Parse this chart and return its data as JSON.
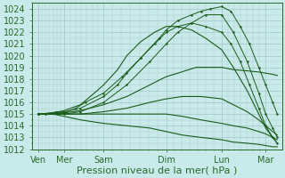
{
  "bg_color": "#c8eaea",
  "grid_color_major": "#9abcbc",
  "grid_color_minor": "#b0cccc",
  "line_color": "#1a5c1a",
  "xlabel": "Pression niveau de la mer( hPa )",
  "xlabel_fontsize": 8,
  "tick_label_fontsize": 7,
  "ylim": [
    1012,
    1024.5
  ],
  "yticks": [
    1012,
    1013,
    1014,
    1015,
    1016,
    1017,
    1018,
    1019,
    1020,
    1021,
    1022,
    1023,
    1024
  ],
  "x_day_labels": [
    "Ven",
    "Mer",
    "Sam",
    "Dim",
    "Lun",
    "Mar"
  ],
  "x_day_positions": [
    0.08,
    0.65,
    1.5,
    2.85,
    4.05,
    5.0
  ],
  "xlim": [
    -0.05,
    5.35
  ],
  "series": [
    {
      "comment": "highest peak line - dotted, peaks around Lun at 1024.2",
      "x": [
        0.08,
        0.25,
        0.5,
        0.65,
        0.9,
        1.1,
        1.5,
        1.9,
        2.3,
        2.7,
        2.85,
        3.1,
        3.4,
        3.6,
        3.8,
        4.05,
        4.25,
        4.45,
        4.65,
        4.85,
        5.0,
        5.15,
        5.25
      ],
      "y": [
        1015.0,
        1015.0,
        1015.2,
        1015.1,
        1015.5,
        1016.0,
        1016.8,
        1018.2,
        1019.8,
        1021.5,
        1022.2,
        1023.0,
        1023.5,
        1023.8,
        1024.0,
        1024.2,
        1023.8,
        1022.5,
        1021.0,
        1019.0,
        1017.5,
        1016.0,
        1015.0
      ],
      "dotted": true
    },
    {
      "comment": "second dotted line - peaks around Dim at 1023.5, ends ~1013",
      "x": [
        0.08,
        0.25,
        0.5,
        0.65,
        1.0,
        1.5,
        2.0,
        2.5,
        2.85,
        3.1,
        3.4,
        3.7,
        4.05,
        4.3,
        4.6,
        4.85,
        5.0,
        5.15,
        5.25
      ],
      "y": [
        1015.0,
        1015.0,
        1015.1,
        1015.0,
        1015.2,
        1016.0,
        1017.5,
        1019.5,
        1021.0,
        1022.0,
        1022.8,
        1023.5,
        1023.5,
        1022.0,
        1019.5,
        1016.8,
        1015.0,
        1013.8,
        1013.0
      ],
      "dotted": true
    },
    {
      "comment": "third dotted line - smaller peak around Sam-Dim, ends ~1013",
      "x": [
        0.08,
        0.4,
        0.65,
        1.0,
        1.5,
        1.8,
        2.0,
        2.3,
        2.6,
        2.85,
        3.1,
        3.4,
        3.7,
        4.05,
        4.25,
        4.45,
        4.65,
        4.85,
        5.0,
        5.15,
        5.25
      ],
      "y": [
        1015.0,
        1015.1,
        1015.2,
        1015.5,
        1016.5,
        1017.5,
        1018.5,
        1019.8,
        1021.0,
        1022.0,
        1022.5,
        1022.8,
        1022.5,
        1022.0,
        1021.0,
        1019.5,
        1017.5,
        1015.5,
        1014.0,
        1013.0,
        1012.5
      ],
      "dotted": true
    },
    {
      "comment": "solid line - peak Sam area ~1022, ends ~1014",
      "x": [
        0.08,
        0.4,
        0.65,
        1.0,
        1.3,
        1.5,
        1.8,
        2.0,
        2.3,
        2.6,
        2.85,
        3.1,
        3.4,
        3.7,
        4.05,
        4.3,
        4.6,
        4.85,
        5.0,
        5.15,
        5.25
      ],
      "y": [
        1015.0,
        1015.1,
        1015.3,
        1015.8,
        1016.8,
        1017.5,
        1018.8,
        1020.0,
        1021.2,
        1022.0,
        1022.5,
        1022.5,
        1022.2,
        1021.5,
        1020.5,
        1019.0,
        1017.0,
        1015.0,
        1013.8,
        1013.0,
        1012.5
      ],
      "dotted": false
    },
    {
      "comment": "solid line - moderate rise to ~1019 at Lun, stays flat",
      "x": [
        0.08,
        0.4,
        0.65,
        1.0,
        1.5,
        2.0,
        2.5,
        2.85,
        3.1,
        3.5,
        4.05,
        4.3,
        4.6,
        4.85,
        5.0,
        5.15,
        5.25
      ],
      "y": [
        1015.0,
        1015.0,
        1015.1,
        1015.3,
        1015.8,
        1016.5,
        1017.5,
        1018.2,
        1018.5,
        1019.0,
        1019.0,
        1018.8,
        1018.7,
        1018.6,
        1018.5,
        1018.4,
        1018.3
      ],
      "dotted": false
    },
    {
      "comment": "solid line - flat around 1015 then slowly down to 1013.2",
      "x": [
        0.08,
        0.4,
        0.65,
        1.0,
        1.5,
        2.0,
        2.5,
        2.85,
        3.2,
        3.6,
        4.05,
        4.3,
        4.6,
        4.85,
        5.0,
        5.15,
        5.25
      ],
      "y": [
        1015.0,
        1015.0,
        1015.0,
        1015.0,
        1015.0,
        1015.0,
        1015.0,
        1015.0,
        1014.8,
        1014.5,
        1014.2,
        1014.0,
        1013.8,
        1013.5,
        1013.3,
        1013.0,
        1012.8
      ],
      "dotted": false
    },
    {
      "comment": "solid line - gently rises to 1016 at Dim then falls to 1013.5",
      "x": [
        0.08,
        0.4,
        0.65,
        1.0,
        1.5,
        2.0,
        2.5,
        2.85,
        3.2,
        3.6,
        4.05,
        4.3,
        4.6,
        4.85,
        5.0,
        5.15,
        5.25
      ],
      "y": [
        1015.0,
        1015.0,
        1015.0,
        1015.0,
        1015.2,
        1015.5,
        1016.0,
        1016.3,
        1016.5,
        1016.5,
        1016.3,
        1015.8,
        1015.2,
        1014.5,
        1014.0,
        1013.5,
        1013.2
      ],
      "dotted": false
    },
    {
      "comment": "lowest solid line - slopes down from 1015 to 1012.2",
      "x": [
        0.08,
        0.4,
        0.65,
        1.0,
        1.5,
        2.0,
        2.5,
        2.85,
        3.2,
        3.6,
        4.05,
        4.3,
        4.6,
        4.85,
        5.0,
        5.15,
        5.25
      ],
      "y": [
        1015.0,
        1015.0,
        1014.8,
        1014.5,
        1014.2,
        1014.0,
        1013.8,
        1013.5,
        1013.2,
        1013.0,
        1012.8,
        1012.6,
        1012.5,
        1012.4,
        1012.3,
        1012.2,
        1012.2
      ],
      "dotted": false
    }
  ]
}
